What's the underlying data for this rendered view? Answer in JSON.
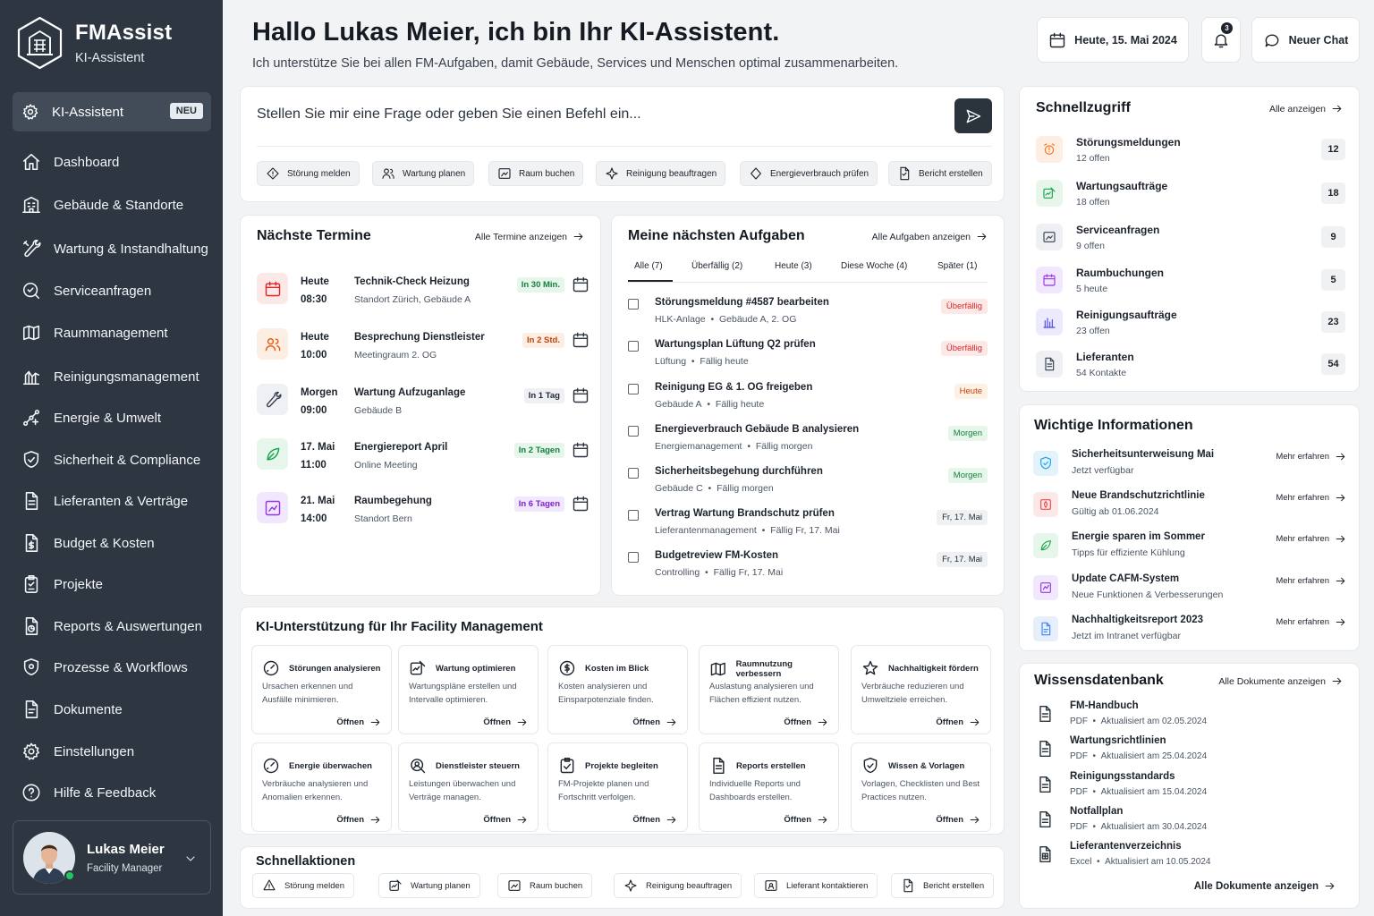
{
  "app": {
    "name": "FMAssist",
    "subtitle": "KI-Assistent"
  },
  "sidebar": {
    "active": {
      "label": "KI-Assistent",
      "badge": "NEU"
    },
    "items": [
      {
        "label": "Dashboard",
        "icon": "home-icon"
      },
      {
        "label": "Gebäude & Standorte",
        "icon": "building-icon"
      },
      {
        "label": "Wartung & Instandhaltung",
        "icon": "wrench-icon"
      },
      {
        "label": "Serviceanfragen",
        "icon": "service-icon"
      },
      {
        "label": "Raummanagement",
        "icon": "room-icon"
      },
      {
        "label": "Reinigungsmanagement",
        "icon": "cleaning-icon"
      },
      {
        "label": "Energie & Umwelt",
        "icon": "energy-icon"
      },
      {
        "label": "Sicherheit & Compliance",
        "icon": "shield-icon"
      },
      {
        "label": "Lieferanten & Verträge",
        "icon": "contract-icon"
      },
      {
        "label": "Budget & Kosten",
        "icon": "budget-icon"
      },
      {
        "label": "Projekte",
        "icon": "project-icon"
      },
      {
        "label": "Reports & Auswertungen",
        "icon": "report-icon"
      },
      {
        "label": "Prozesse & Workflows",
        "icon": "workflow-icon"
      },
      {
        "label": "Dokumente",
        "icon": "document-icon"
      },
      {
        "label": "Einstellungen",
        "icon": "gear-icon"
      },
      {
        "label": "Hilfe & Feedback",
        "icon": "help-icon"
      }
    ],
    "user": {
      "name": "Lukas Meier",
      "role": "Facility Manager"
    }
  },
  "header": {
    "title": "Hallo Lukas Meier, ich bin Ihr KI-Assistent.",
    "subtitle": "Ich unterstütze Sie bei allen FM-Aufgaben, damit Gebäude, Services und Menschen optimal zusammenarbeiten.",
    "date": "Heute, 15. Mai 2024",
    "notifications": "3",
    "new_chat": "Neuer Chat"
  },
  "assistant": {
    "placeholder": "Stellen Sie mir eine Frage oder geben Sie einen Befehl ein...",
    "chips": [
      "Störung melden",
      "Wartung planen",
      "Raum buchen",
      "Reinigung beauftragen",
      "Energieverbrauch prüfen",
      "Bericht erstellen"
    ]
  },
  "termine": {
    "title": "Nächste Termine",
    "link": "Alle Termine anzeigen",
    "items": [
      {
        "day": "Heute",
        "time": "08:30",
        "name": "Technik-Check Heizung",
        "location": "Standort Zürich, Gebäude A",
        "badge": "In 30 Min."
      },
      {
        "day": "Heute",
        "time": "10:00",
        "name": "Besprechung Dienstleister",
        "location": "Meetingraum 2. OG",
        "badge": "In 2 Std."
      },
      {
        "day": "Morgen",
        "time": "09:00",
        "name": "Wartung Aufzuganlage",
        "location": "Gebäude B",
        "badge": "In 1 Tag"
      },
      {
        "day": "17. Mai",
        "time": "11:00",
        "name": "Energiereport April",
        "location": "Online Meeting",
        "badge": "In 2 Tagen"
      },
      {
        "day": "21. Mai",
        "time": "14:00",
        "name": "Raumbegehung",
        "location": "Standort Bern",
        "badge": "In 6 Tagen"
      }
    ]
  },
  "aufgaben": {
    "title": "Meine nächsten Aufgaben",
    "link": "Alle Aufgaben anzeigen",
    "tabs": [
      "Alle (7)",
      "Überfällig (2)",
      "Heute (3)",
      "Diese Woche (4)",
      "Später (1)"
    ],
    "items": [
      {
        "title": "Störungsmeldung #4587 bearbeiten",
        "category": "HLK-Anlage",
        "detail": "Gebäude A, 2. OG",
        "badge": "Überfällig"
      },
      {
        "title": "Wartungsplan Lüftung Q2 prüfen",
        "category": "Lüftung",
        "detail": "Fällig heute",
        "badge": "Überfällig"
      },
      {
        "title": "Reinigung EG & 1. OG freigeben",
        "category": "Gebäude A",
        "detail": "Fällig heute",
        "badge": "Heute"
      },
      {
        "title": "Energieverbrauch Gebäude B analysieren",
        "category": "Energiemanagement",
        "detail": "Fällig morgen",
        "badge": "Morgen"
      },
      {
        "title": "Sicherheitsbegehung durchführen",
        "category": "Gebäude C",
        "detail": "Fällig morgen",
        "badge": "Morgen"
      },
      {
        "title": "Vertrag Wartung Brandschutz prüfen",
        "category": "Lieferantenmanagement",
        "detail": "Fällig Fr, 17. Mai",
        "badge": "Fr, 17. Mai"
      },
      {
        "title": "Budgetreview FM-Kosten",
        "category": "Controlling",
        "detail": "Fällig Fr, 17. Mai",
        "badge": "Fr, 17. Mai"
      }
    ]
  },
  "ki_support": {
    "title": "KI-Unterstützung für Ihr Facility Management",
    "open_label": "Öffnen",
    "cards": [
      {
        "title": "Störungen analysieren",
        "desc": "Ursachen erkennen und Ausfälle minimieren."
      },
      {
        "title": "Wartung optimieren",
        "desc": "Wartungspläne erstellen und Intervalle optimieren."
      },
      {
        "title": "Kosten im Blick",
        "desc": "Kosten analysieren und Einsparpotenziale finden."
      },
      {
        "title": "Raumnutzung verbessern",
        "desc": "Auslastung analysieren und Flächen effizient nutzen."
      },
      {
        "title": "Nachhaltigkeit fördern",
        "desc": "Verbräuche reduzieren und Umweltziele erreichen."
      },
      {
        "title": "Energie überwachen",
        "desc": "Verbräuche analysieren und Anomalien erkennen."
      },
      {
        "title": "Dienstleister steuern",
        "desc": "Leistungen überwachen und Verträge managen."
      },
      {
        "title": "Projekte begleiten",
        "desc": "FM-Projekte planen und Fortschritt verfolgen."
      },
      {
        "title": "Reports erstellen",
        "desc": "Individuelle Reports und Dashboards erstellen."
      },
      {
        "title": "Wissen & Vorlagen",
        "desc": "Vorlagen, Checklisten und Best Practices nutzen."
      }
    ]
  },
  "schnellaktionen": {
    "title": "Schnellaktionen",
    "items": [
      "Störung melden",
      "Wartung planen",
      "Raum buchen",
      "Reinigung beauftragen",
      "Lieferant kontaktieren",
      "Bericht erstellen"
    ]
  },
  "schnellzugriff": {
    "title": "Schnellzugriff",
    "link": "Alle anzeigen",
    "items": [
      {
        "name": "Störungsmeldungen",
        "sub": "12 offen",
        "count": "12",
        "color": "#f97316"
      },
      {
        "name": "Wartungsaufträge",
        "sub": "18 offen",
        "count": "18",
        "color": "#16a34a"
      },
      {
        "name": "Serviceanfragen",
        "sub": "9 offen",
        "count": "9",
        "color": "#374151"
      },
      {
        "name": "Raumbuchungen",
        "sub": "5 heute",
        "count": "5",
        "color": "#9333ea"
      },
      {
        "name": "Reinigungsaufträge",
        "sub": "23 offen",
        "count": "23",
        "color": "#4f46e5"
      },
      {
        "name": "Lieferanten",
        "sub": "54 Kontakte",
        "count": "54",
        "color": "#374151"
      }
    ]
  },
  "info": {
    "title": "Wichtige Informationen",
    "more_label": "Mehr erfahren",
    "items": [
      {
        "name": "Sicherheitsunterweisung Mai",
        "sub": "Jetzt verfügbar",
        "color": "#0ea5e9"
      },
      {
        "name": "Neue Brandschutzrichtlinie",
        "sub": "Gültig ab 01.06.2024",
        "color": "#ef4444"
      },
      {
        "name": "Energie sparen im Sommer",
        "sub": "Tipps für effiziente Kühlung",
        "color": "#16a34a"
      },
      {
        "name": "Update CAFM-System",
        "sub": "Neue Funktionen & Verbesserungen",
        "color": "#9333ea"
      },
      {
        "name": "Nachhaltigkeitsreport 2023",
        "sub": "Jetzt im Intranet verfügbar",
        "color": "#3b82f6"
      }
    ]
  },
  "wissen": {
    "title": "Wissensdatenbank",
    "link": "Alle Dokumente anzeigen",
    "bottom_link": "Alle Dokumente anzeigen",
    "items": [
      {
        "name": "FM-Handbuch",
        "type": "PDF",
        "date": "Aktualisiert am 02.05.2024"
      },
      {
        "name": "Wartungsrichtlinien",
        "type": "PDF",
        "date": "Aktualisiert am 25.04.2024"
      },
      {
        "name": "Reinigungsstandards",
        "type": "PDF",
        "date": "Aktualisiert am 15.04.2024"
      },
      {
        "name": "Notfallplan",
        "type": "PDF",
        "date": "Aktualisiert am 30.04.2024"
      },
      {
        "name": "Lieferantenverzeichnis",
        "type": "Excel",
        "date": "Aktualisiert am 10.05.2024"
      }
    ]
  }
}
